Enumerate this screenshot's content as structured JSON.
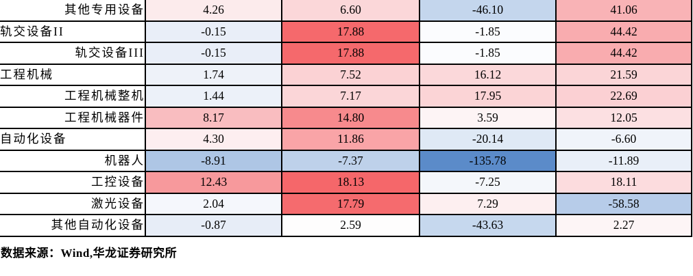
{
  "chart_data": {
    "type": "heatmap",
    "description": "Cropped heatmap table of industry sub-sector growth figures; red shading = higher positive values, blue shading = negative values, shading normalized per column",
    "columns": [
      "col-1",
      "col-2",
      "col-3",
      "col-4"
    ],
    "rows": [
      {
        "label": "其他专用设备",
        "indent": true,
        "values": [
          4.26,
          6.6,
          -46.1,
          41.06
        ],
        "colors": [
          "#fcebec",
          "#fbd7d9",
          "#c4d6ed",
          "#f9b3b6"
        ]
      },
      {
        "label": "轨交设备II",
        "indent": false,
        "values": [
          -0.15,
          17.88,
          -1.85,
          44.42
        ],
        "colors": [
          "#e9eef8",
          "#f5696c",
          "#fbfcfe",
          "#f9acaf"
        ]
      },
      {
        "label": "轨交设备III",
        "indent": true,
        "values": [
          -0.15,
          17.88,
          -1.85,
          44.42
        ],
        "colors": [
          "#e9eef8",
          "#f5696c",
          "#fbfcfe",
          "#f9acaf"
        ]
      },
      {
        "label": "工程机械",
        "indent": false,
        "values": [
          1.74,
          7.52,
          16.12,
          21.59
        ],
        "colors": [
          "#eef2f9",
          "#fbd2d4",
          "#fbd8da",
          "#fbd5d7"
        ]
      },
      {
        "label": "工程机械整机",
        "indent": true,
        "values": [
          1.44,
          7.17,
          17.95,
          22.69
        ],
        "colors": [
          "#ecf1f9",
          "#fbd6d8",
          "#fbd4d6",
          "#fbd0d3"
        ]
      },
      {
        "label": "工程机械器件",
        "indent": true,
        "values": [
          8.17,
          14.8,
          3.59,
          12.05
        ],
        "colors": [
          "#f9bdc0",
          "#f78a8d",
          "#fdf4f5",
          "#fce0e2"
        ]
      },
      {
        "label": "自动化设备",
        "indent": false,
        "values": [
          4.3,
          11.86,
          -20.14,
          -6.6
        ],
        "colors": [
          "#fdeef0",
          "#f9a4a7",
          "#dfe9f5",
          "#f0f4fa"
        ]
      },
      {
        "label": "机器人",
        "indent": true,
        "values": [
          -8.91,
          -7.37,
          -135.78,
          -11.89
        ],
        "colors": [
          "#aec6e5",
          "#bed1ea",
          "#5b8bc9",
          "#e9eff8"
        ]
      },
      {
        "label": "工控设备",
        "indent": true,
        "values": [
          12.43,
          18.13,
          -7.25,
          18.11
        ],
        "colors": [
          "#f7999c",
          "#f5676a",
          "#f4f7fb",
          "#fcdcde"
        ]
      },
      {
        "label": "激光设备",
        "indent": true,
        "values": [
          2.04,
          17.79,
          7.29,
          -58.58
        ],
        "colors": [
          "#f5f7fc",
          "#f56b6e",
          "#fdeff0",
          "#b7cce9"
        ]
      },
      {
        "label": "其他自动化设备",
        "indent": true,
        "values": [
          -0.87,
          2.59,
          -43.63,
          2.27
        ],
        "colors": [
          "#e7edf7",
          "#fefdfd",
          "#c6d8ee",
          "#fdf5f6"
        ]
      }
    ],
    "legend_position": "none",
    "grid": true
  },
  "colors": {
    "positive_strong": "#f5696c",
    "negative_strong": "#5b8bc9",
    "border": "#000000",
    "background": "#ffffff"
  },
  "footer": {
    "text": "数据来源：Wind,华龙证券研究所"
  }
}
